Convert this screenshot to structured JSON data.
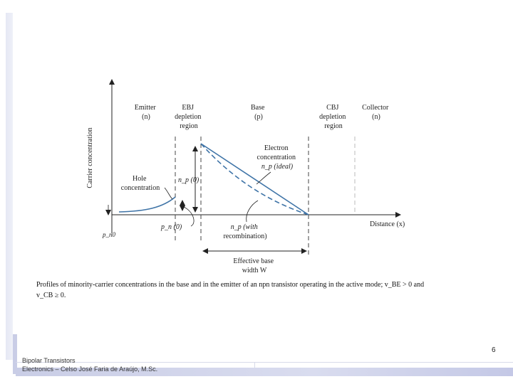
{
  "diagram": {
    "y_axis_label": "Carrier concentration",
    "x_axis_label": "Distance (x)",
    "regions": {
      "emitter": [
        "Emitter",
        "(n)"
      ],
      "ebj": [
        "EBJ",
        "depletion",
        "region"
      ],
      "base": [
        "Base",
        "(p)"
      ],
      "cbj": [
        "CBJ",
        "depletion",
        "region"
      ],
      "collector": [
        "Collector",
        "(n)"
      ]
    },
    "labels": {
      "electron_concentration": [
        "Electron",
        "concentration",
        "n_p (ideal)"
      ],
      "hole_concentration": [
        "Hole",
        "concentration"
      ],
      "np0": "n_p (0)",
      "pn0": "p_n (0)",
      "pn0_axis": "p_n0",
      "with_recombination": [
        "n_p (with",
        "recombination)"
      ],
      "effective_base_width": [
        "Effective base",
        "width W"
      ]
    }
  },
  "caption": {
    "line1": "Profiles of minority-carrier concentrations in the base and in the emitter of an npn transistor operating in the active mode; v_BE > 0 and",
    "line2": "v_CB ≥ 0."
  },
  "page_number": "6",
  "footer": {
    "title": "Bipolar Transistors",
    "course": "Electronics – Celso José Faria de Araújo, M.Sc."
  }
}
